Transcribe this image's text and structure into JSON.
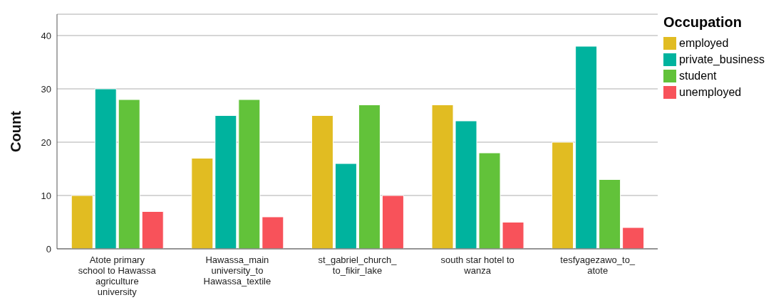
{
  "chart_data": {
    "type": "bar",
    "ylabel": "Count",
    "legend_title": "Occupation",
    "categories": [
      "Atote primary school to Hawassa agriculture university",
      "Hawassa_main university_to Hawassa_textile",
      "st_gabriel_church_to_fikir_lake",
      "south star hotel to wanza",
      "tesfyagezawo_to_atote"
    ],
    "series": [
      {
        "name": "employed",
        "color": "#e1bc22",
        "values": [
          10,
          17,
          25,
          27,
          20
        ]
      },
      {
        "name": "private_business",
        "color": "#00b39e",
        "values": [
          30,
          25,
          16,
          24,
          38
        ]
      },
      {
        "name": "student",
        "color": "#62c23a",
        "values": [
          28,
          28,
          27,
          18,
          13
        ]
      },
      {
        "name": "unemployed",
        "color": "#f8525a",
        "values": [
          7,
          6,
          10,
          5,
          4
        ]
      }
    ],
    "ylim": [
      0,
      44
    ],
    "yticks": [
      0,
      10,
      20,
      30,
      40
    ],
    "grid": "y",
    "legend": "top right"
  }
}
